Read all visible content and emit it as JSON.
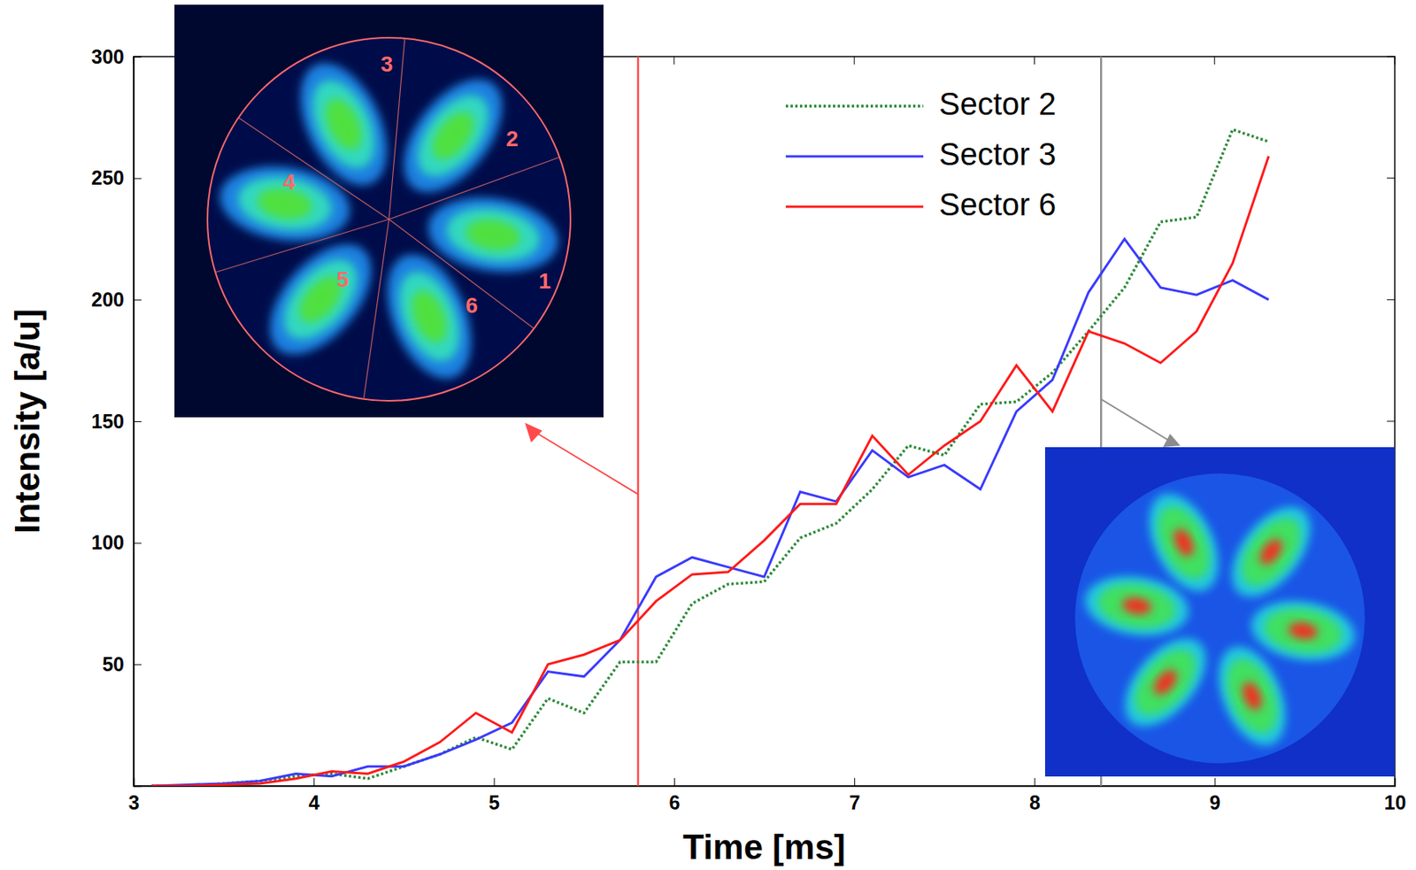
{
  "chart_data": {
    "type": "line",
    "x_label": "Time [ms]",
    "y_label": "Intensity [a/u]",
    "x": [
      3.1,
      3.3,
      3.5,
      3.7,
      3.9,
      4.1,
      4.3,
      4.5,
      4.7,
      4.9,
      5.1,
      5.3,
      5.5,
      5.7,
      5.9,
      6.1,
      6.3,
      6.5,
      6.7,
      6.9,
      7.1,
      7.3,
      7.5,
      7.7,
      7.9,
      8.1,
      8.3,
      8.5,
      8.7,
      8.9,
      9.1,
      9.3
    ],
    "series": [
      {
        "name": "Sector 2",
        "color": "#2e8b3a",
        "line_style": "dotted",
        "values": [
          0,
          0,
          1,
          2,
          4,
          5,
          3,
          8,
          13,
          20,
          15,
          36,
          30,
          51,
          51,
          75,
          83,
          84,
          102,
          108,
          122,
          140,
          136,
          157,
          158,
          170,
          187,
          205,
          232,
          234,
          270,
          265
        ]
      },
      {
        "name": "Sector 3",
        "color": "#3a3aff",
        "line_style": "solid",
        "values": [
          0,
          0.5,
          1,
          2,
          5,
          4,
          8,
          8,
          13,
          19,
          26,
          47,
          45,
          60,
          86,
          94,
          90,
          86,
          121,
          117,
          138,
          127,
          132,
          122,
          154,
          167,
          203,
          225,
          205,
          202,
          208,
          200
        ]
      },
      {
        "name": "Sector 6",
        "color": "#ff1a1a",
        "line_style": "solid",
        "values": [
          0,
          0,
          0.5,
          1,
          3,
          6,
          5,
          10,
          18,
          30,
          22,
          50,
          54,
          60,
          76,
          87,
          88,
          101,
          116,
          116,
          144,
          128,
          140,
          150,
          173,
          154,
          187,
          182,
          174,
          187,
          215,
          259
        ]
      }
    ],
    "xlim": [
      3,
      10
    ],
    "xticks": [
      3,
      4,
      5,
      6,
      7,
      8,
      9,
      10
    ],
    "ylim": [
      0,
      300
    ],
    "yticks": [
      50,
      100,
      150,
      200,
      250,
      300
    ],
    "vlines": [
      {
        "x": 5.8,
        "color": "#ff4a4a"
      },
      {
        "x": 8.37,
        "color": "#8c8c8c"
      }
    ],
    "annotations": [
      "1",
      "2",
      "3",
      "4",
      "5",
      "6"
    ],
    "legend": "upper right",
    "grid": false
  }
}
